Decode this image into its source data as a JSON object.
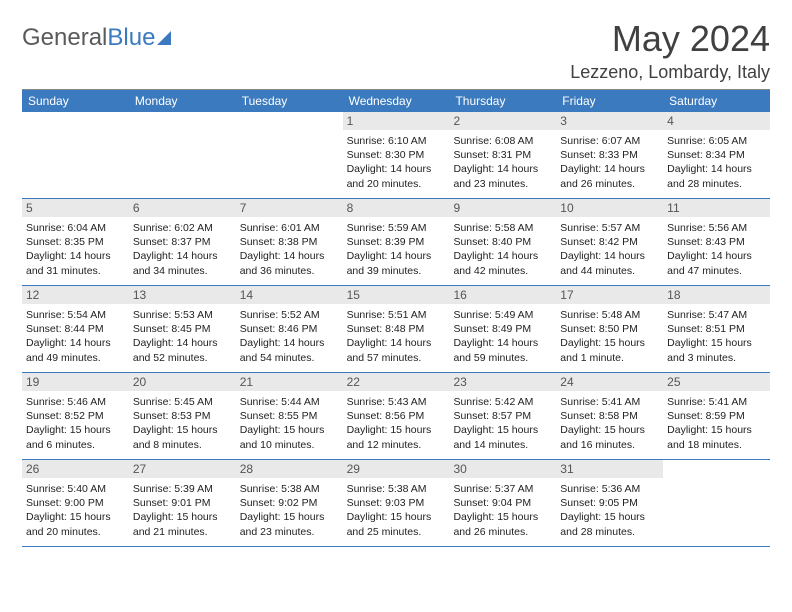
{
  "logo": {
    "left": "General",
    "right": "Blue"
  },
  "title": "May 2024",
  "location": "Lezzeno, Lombardy, Italy",
  "colors": {
    "header_bg": "#3b7abf",
    "header_text": "#ffffff",
    "daynum_bg": "#e9e9e9",
    "text": "#222222",
    "title_color": "#404040",
    "rule_color": "#3b7abf"
  },
  "typography": {
    "title_fontsize": 36,
    "location_fontsize": 18,
    "weekday_fontsize": 12,
    "body_fontsize": 10.5
  },
  "weekdays": [
    "Sunday",
    "Monday",
    "Tuesday",
    "Wednesday",
    "Thursday",
    "Friday",
    "Saturday"
  ],
  "weeks": [
    [
      null,
      null,
      null,
      {
        "n": "1",
        "sr": "Sunrise: 6:10 AM",
        "ss": "Sunset: 8:30 PM",
        "d1": "Daylight: 14 hours",
        "d2": "and 20 minutes."
      },
      {
        "n": "2",
        "sr": "Sunrise: 6:08 AM",
        "ss": "Sunset: 8:31 PM",
        "d1": "Daylight: 14 hours",
        "d2": "and 23 minutes."
      },
      {
        "n": "3",
        "sr": "Sunrise: 6:07 AM",
        "ss": "Sunset: 8:33 PM",
        "d1": "Daylight: 14 hours",
        "d2": "and 26 minutes."
      },
      {
        "n": "4",
        "sr": "Sunrise: 6:05 AM",
        "ss": "Sunset: 8:34 PM",
        "d1": "Daylight: 14 hours",
        "d2": "and 28 minutes."
      }
    ],
    [
      {
        "n": "5",
        "sr": "Sunrise: 6:04 AM",
        "ss": "Sunset: 8:35 PM",
        "d1": "Daylight: 14 hours",
        "d2": "and 31 minutes."
      },
      {
        "n": "6",
        "sr": "Sunrise: 6:02 AM",
        "ss": "Sunset: 8:37 PM",
        "d1": "Daylight: 14 hours",
        "d2": "and 34 minutes."
      },
      {
        "n": "7",
        "sr": "Sunrise: 6:01 AM",
        "ss": "Sunset: 8:38 PM",
        "d1": "Daylight: 14 hours",
        "d2": "and 36 minutes."
      },
      {
        "n": "8",
        "sr": "Sunrise: 5:59 AM",
        "ss": "Sunset: 8:39 PM",
        "d1": "Daylight: 14 hours",
        "d2": "and 39 minutes."
      },
      {
        "n": "9",
        "sr": "Sunrise: 5:58 AM",
        "ss": "Sunset: 8:40 PM",
        "d1": "Daylight: 14 hours",
        "d2": "and 42 minutes."
      },
      {
        "n": "10",
        "sr": "Sunrise: 5:57 AM",
        "ss": "Sunset: 8:42 PM",
        "d1": "Daylight: 14 hours",
        "d2": "and 44 minutes."
      },
      {
        "n": "11",
        "sr": "Sunrise: 5:56 AM",
        "ss": "Sunset: 8:43 PM",
        "d1": "Daylight: 14 hours",
        "d2": "and 47 minutes."
      }
    ],
    [
      {
        "n": "12",
        "sr": "Sunrise: 5:54 AM",
        "ss": "Sunset: 8:44 PM",
        "d1": "Daylight: 14 hours",
        "d2": "and 49 minutes."
      },
      {
        "n": "13",
        "sr": "Sunrise: 5:53 AM",
        "ss": "Sunset: 8:45 PM",
        "d1": "Daylight: 14 hours",
        "d2": "and 52 minutes."
      },
      {
        "n": "14",
        "sr": "Sunrise: 5:52 AM",
        "ss": "Sunset: 8:46 PM",
        "d1": "Daylight: 14 hours",
        "d2": "and 54 minutes."
      },
      {
        "n": "15",
        "sr": "Sunrise: 5:51 AM",
        "ss": "Sunset: 8:48 PM",
        "d1": "Daylight: 14 hours",
        "d2": "and 57 minutes."
      },
      {
        "n": "16",
        "sr": "Sunrise: 5:49 AM",
        "ss": "Sunset: 8:49 PM",
        "d1": "Daylight: 14 hours",
        "d2": "and 59 minutes."
      },
      {
        "n": "17",
        "sr": "Sunrise: 5:48 AM",
        "ss": "Sunset: 8:50 PM",
        "d1": "Daylight: 15 hours",
        "d2": "and 1 minute."
      },
      {
        "n": "18",
        "sr": "Sunrise: 5:47 AM",
        "ss": "Sunset: 8:51 PM",
        "d1": "Daylight: 15 hours",
        "d2": "and 3 minutes."
      }
    ],
    [
      {
        "n": "19",
        "sr": "Sunrise: 5:46 AM",
        "ss": "Sunset: 8:52 PM",
        "d1": "Daylight: 15 hours",
        "d2": "and 6 minutes."
      },
      {
        "n": "20",
        "sr": "Sunrise: 5:45 AM",
        "ss": "Sunset: 8:53 PM",
        "d1": "Daylight: 15 hours",
        "d2": "and 8 minutes."
      },
      {
        "n": "21",
        "sr": "Sunrise: 5:44 AM",
        "ss": "Sunset: 8:55 PM",
        "d1": "Daylight: 15 hours",
        "d2": "and 10 minutes."
      },
      {
        "n": "22",
        "sr": "Sunrise: 5:43 AM",
        "ss": "Sunset: 8:56 PM",
        "d1": "Daylight: 15 hours",
        "d2": "and 12 minutes."
      },
      {
        "n": "23",
        "sr": "Sunrise: 5:42 AM",
        "ss": "Sunset: 8:57 PM",
        "d1": "Daylight: 15 hours",
        "d2": "and 14 minutes."
      },
      {
        "n": "24",
        "sr": "Sunrise: 5:41 AM",
        "ss": "Sunset: 8:58 PM",
        "d1": "Daylight: 15 hours",
        "d2": "and 16 minutes."
      },
      {
        "n": "25",
        "sr": "Sunrise: 5:41 AM",
        "ss": "Sunset: 8:59 PM",
        "d1": "Daylight: 15 hours",
        "d2": "and 18 minutes."
      }
    ],
    [
      {
        "n": "26",
        "sr": "Sunrise: 5:40 AM",
        "ss": "Sunset: 9:00 PM",
        "d1": "Daylight: 15 hours",
        "d2": "and 20 minutes."
      },
      {
        "n": "27",
        "sr": "Sunrise: 5:39 AM",
        "ss": "Sunset: 9:01 PM",
        "d1": "Daylight: 15 hours",
        "d2": "and 21 minutes."
      },
      {
        "n": "28",
        "sr": "Sunrise: 5:38 AM",
        "ss": "Sunset: 9:02 PM",
        "d1": "Daylight: 15 hours",
        "d2": "and 23 minutes."
      },
      {
        "n": "29",
        "sr": "Sunrise: 5:38 AM",
        "ss": "Sunset: 9:03 PM",
        "d1": "Daylight: 15 hours",
        "d2": "and 25 minutes."
      },
      {
        "n": "30",
        "sr": "Sunrise: 5:37 AM",
        "ss": "Sunset: 9:04 PM",
        "d1": "Daylight: 15 hours",
        "d2": "and 26 minutes."
      },
      {
        "n": "31",
        "sr": "Sunrise: 5:36 AM",
        "ss": "Sunset: 9:05 PM",
        "d1": "Daylight: 15 hours",
        "d2": "and 28 minutes."
      },
      null
    ]
  ]
}
